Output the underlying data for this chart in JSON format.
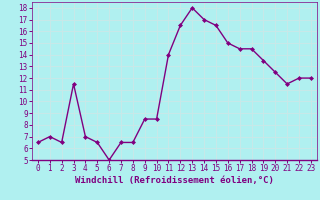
{
  "x": [
    0,
    1,
    2,
    3,
    4,
    5,
    6,
    7,
    8,
    9,
    10,
    11,
    12,
    13,
    14,
    15,
    16,
    17,
    18,
    19,
    20,
    21,
    22,
    23
  ],
  "y": [
    6.5,
    7.0,
    6.5,
    11.5,
    7.0,
    6.5,
    5.0,
    6.5,
    6.5,
    8.5,
    8.5,
    14.0,
    16.5,
    18.0,
    17.0,
    16.5,
    15.0,
    14.5,
    14.5,
    13.5,
    12.5,
    11.5,
    12.0,
    12.0
  ],
  "title": "",
  "xlabel": "Windchill (Refroidissement éolien,°C)",
  "ylabel": "",
  "xlim": [
    -0.5,
    23.5
  ],
  "ylim": [
    5,
    18.5
  ],
  "yticks": [
    5,
    6,
    7,
    8,
    9,
    10,
    11,
    12,
    13,
    14,
    15,
    16,
    17,
    18
  ],
  "xticks": [
    0,
    1,
    2,
    3,
    4,
    5,
    6,
    7,
    8,
    9,
    10,
    11,
    12,
    13,
    14,
    15,
    16,
    17,
    18,
    19,
    20,
    21,
    22,
    23
  ],
  "line_color": "#800080",
  "marker_color": "#800080",
  "bg_color": "#b0f0f0",
  "grid_color": "#c8e8e8",
  "label_color": "#800080",
  "xlabel_fontsize": 6.5,
  "tick_fontsize": 5.5
}
